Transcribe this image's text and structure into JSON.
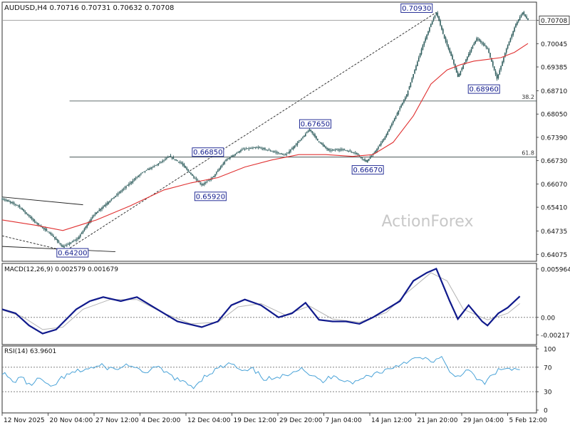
{
  "colors": {
    "background": "#ffffff",
    "border": "#2f2f2f",
    "candle": "#2f5d5d",
    "ma": "#e03030",
    "macd_line": "#101a8c",
    "macd_signal": "#b4b4b4",
    "rsi": "#4aa3d8",
    "grid_ref": "#707070",
    "trendline": "#222222",
    "fib": "#2f3f3f",
    "label_border": "#101a8c",
    "label_text": "#101a8c",
    "watermark": "#c8c8c8"
  },
  "header": {
    "symbol_text": "AUDUSD,H4  0.70716  0.70731  0.70632  0.70708"
  },
  "watermark": "ActionForex",
  "chart_data": [
    {
      "type": "candlestick",
      "symbol": "AUDUSD",
      "timeframe": "H4",
      "ohlc_last": {
        "open": 0.70716,
        "high": 0.70731,
        "low": 0.70632,
        "close": 0.70708
      },
      "current_price_label": "0.70708",
      "ylim": [
        0.64,
        0.711
      ],
      "y_ticks": [
        "0.70708",
        "0.70045",
        "0.69385",
        "0.68710",
        "0.68050",
        "0.67390",
        "0.66730",
        "0.66070",
        "0.65410",
        "0.64735",
        "0.64075"
      ],
      "y_tick_values": [
        0.70708,
        0.70045,
        0.69385,
        0.6871,
        0.6805,
        0.6739,
        0.6673,
        0.6607,
        0.6541,
        0.64735,
        0.64075
      ],
      "x_ticks": [
        "12 Nov 2025",
        "20 Nov 04:00",
        "27 Nov 12:00",
        "4 Dec 20:00",
        "12 Dec 04:00",
        "19 Dec 12:00",
        "29 Dec 20:00",
        "7 Jan 04:00",
        "14 Jan 12:00",
        "21 Jan 20:00",
        "29 Jan 04:00",
        "5 Feb 12:00"
      ],
      "price_path": [
        [
          0,
          0.6565
        ],
        [
          12,
          0.6545
        ],
        [
          24,
          0.65
        ],
        [
          36,
          0.6465
        ],
        [
          45,
          0.6428
        ],
        [
          56,
          0.6452
        ],
        [
          68,
          0.652
        ],
        [
          80,
          0.656
        ],
        [
          92,
          0.66
        ],
        [
          104,
          0.664
        ],
        [
          114,
          0.666
        ],
        [
          124,
          0.6685
        ],
        [
          133,
          0.6665
        ],
        [
          141,
          0.663
        ],
        [
          148,
          0.6604
        ],
        [
          156,
          0.6625
        ],
        [
          166,
          0.6675
        ],
        [
          178,
          0.6705
        ],
        [
          190,
          0.671
        ],
        [
          200,
          0.67
        ],
        [
          210,
          0.6688
        ],
        [
          222,
          0.6735
        ],
        [
          228,
          0.6762
        ],
        [
          234,
          0.673
        ],
        [
          242,
          0.6702
        ],
        [
          252,
          0.6705
        ],
        [
          262,
          0.6695
        ],
        [
          270,
          0.667
        ],
        [
          276,
          0.6695
        ],
        [
          284,
          0.674
        ],
        [
          292,
          0.68
        ],
        [
          300,
          0.686
        ],
        [
          306,
          0.693
        ],
        [
          312,
          0.7
        ],
        [
          318,
          0.706
        ],
        [
          322,
          0.7093
        ],
        [
          328,
          0.702
        ],
        [
          334,
          0.696
        ],
        [
          338,
          0.691
        ],
        [
          344,
          0.696
        ],
        [
          352,
          0.702
        ],
        [
          360,
          0.699
        ],
        [
          367,
          0.6905
        ],
        [
          374,
          0.699
        ],
        [
          381,
          0.706
        ],
        [
          386,
          0.7093
        ],
        [
          390,
          0.7071
        ]
      ],
      "moving_average": [
        [
          0,
          0.6505
        ],
        [
          25,
          0.649
        ],
        [
          45,
          0.6475
        ],
        [
          70,
          0.6505
        ],
        [
          95,
          0.6545
        ],
        [
          120,
          0.659
        ],
        [
          140,
          0.661
        ],
        [
          160,
          0.6625
        ],
        [
          180,
          0.6655
        ],
        [
          200,
          0.6675
        ],
        [
          220,
          0.669
        ],
        [
          240,
          0.669
        ],
        [
          260,
          0.6685
        ],
        [
          275,
          0.669
        ],
        [
          290,
          0.6725
        ],
        [
          305,
          0.68
        ],
        [
          318,
          0.689
        ],
        [
          330,
          0.693
        ],
        [
          340,
          0.6945
        ],
        [
          350,
          0.6955
        ],
        [
          360,
          0.696
        ],
        [
          370,
          0.6965
        ],
        [
          380,
          0.698
        ],
        [
          390,
          0.7005
        ]
      ],
      "price_labels": [
        {
          "text": "0.64200",
          "x": 48,
          "y": 0.642
        },
        {
          "text": "0.66850",
          "x": 150,
          "y": 0.6685
        },
        {
          "text": "0.65920",
          "x": 145,
          "y": 0.6592
        },
        {
          "text": "0.67650",
          "x": 228,
          "y": 0.6765
        },
        {
          "text": "0.66670",
          "x": 268,
          "y": 0.6667
        },
        {
          "text": "0.70930",
          "x": 318,
          "y": 0.7093
        },
        {
          "text": "0.68960",
          "x": 351,
          "y": 0.6896
        }
      ],
      "fib_levels": [
        {
          "label": "38.2",
          "value": 0.6842
        },
        {
          "label": "61.8",
          "value": 0.6683
        }
      ],
      "trendlines": [
        {
          "from": [
            48,
            0.642
          ],
          "to": [
            322,
            0.7093
          ],
          "style": "dashed"
        },
        {
          "from": [
            0,
            0.657
          ],
          "to": [
            60,
            0.6548
          ],
          "style": "solid"
        },
        {
          "from": [
            0,
            0.643
          ],
          "to": [
            84,
            0.6415
          ],
          "style": "solid"
        },
        {
          "from": [
            0,
            0.646
          ],
          "to": [
            44,
            0.642
          ],
          "style": "dashed"
        }
      ]
    },
    {
      "type": "line",
      "title": "MACD(12,26,9) 0.002579 0.001679",
      "ylim": [
        -0.003,
        0.0063
      ],
      "y_ticks": [
        "0.005964",
        "0.00",
        "-0.002177"
      ],
      "y_tick_values": [
        0.005964,
        0.0,
        -0.002177
      ],
      "series": [
        {
          "name": "MACD",
          "points": [
            [
              0,
              0.001
            ],
            [
              10,
              0.0005
            ],
            [
              20,
              -0.001
            ],
            [
              30,
              -0.002
            ],
            [
              40,
              -0.0015
            ],
            [
              55,
              0.001
            ],
            [
              65,
              0.002
            ],
            [
              75,
              0.0025
            ],
            [
              88,
              0.002
            ],
            [
              100,
              0.0025
            ],
            [
              115,
              0.001
            ],
            [
              130,
              -0.0005
            ],
            [
              148,
              -0.0012
            ],
            [
              160,
              -0.0005
            ],
            [
              170,
              0.0015
            ],
            [
              180,
              0.0022
            ],
            [
              192,
              0.0015
            ],
            [
              205,
              0.0
            ],
            [
              215,
              0.0005
            ],
            [
              225,
              0.0018
            ],
            [
              235,
              -0.0003
            ],
            [
              245,
              -0.0005
            ],
            [
              255,
              -0.0005
            ],
            [
              265,
              -0.0008
            ],
            [
              275,
              0.0
            ],
            [
              285,
              0.001
            ],
            [
              295,
              0.002
            ],
            [
              305,
              0.0045
            ],
            [
              315,
              0.0055
            ],
            [
              322,
              0.006
            ],
            [
              332,
              0.002
            ],
            [
              338,
              -0.0002
            ],
            [
              346,
              0.0015
            ],
            [
              356,
              -0.0005
            ],
            [
              360,
              -0.001
            ],
            [
              368,
              0.0005
            ],
            [
              375,
              0.0012
            ],
            [
              384,
              0.0026
            ]
          ]
        },
        {
          "name": "Signal",
          "points": [
            [
              0,
              0.0009
            ],
            [
              15,
              0.0001
            ],
            [
              30,
              -0.0015
            ],
            [
              45,
              -0.0012
            ],
            [
              60,
              0.001
            ],
            [
              80,
              0.0022
            ],
            [
              100,
              0.0022
            ],
            [
              120,
              0.0005
            ],
            [
              140,
              -0.0008
            ],
            [
              160,
              -0.0006
            ],
            [
              175,
              0.0013
            ],
            [
              192,
              0.0017
            ],
            [
              210,
              0.0003
            ],
            [
              228,
              0.0014
            ],
            [
              245,
              -0.0002
            ],
            [
              265,
              -0.0006
            ],
            [
              285,
              0.0006
            ],
            [
              300,
              0.003
            ],
            [
              318,
              0.0055
            ],
            [
              330,
              0.0045
            ],
            [
              342,
              0.001
            ],
            [
              360,
              -0.0003
            ],
            [
              375,
              0.0005
            ],
            [
              384,
              0.0017
            ]
          ]
        }
      ]
    },
    {
      "type": "line",
      "title": "RSI(14) 63.9601",
      "ylim": [
        0,
        100
      ],
      "y_ticks": [
        "100",
        "70",
        "30",
        "0"
      ],
      "y_tick_values": [
        100,
        70,
        30,
        0
      ],
      "series": [
        {
          "name": "RSI",
          "points": [
            [
              0,
              62
            ],
            [
              8,
              45
            ],
            [
              14,
              55
            ],
            [
              20,
              40
            ],
            [
              28,
              52
            ],
            [
              36,
              35
            ],
            [
              44,
              52
            ],
            [
              54,
              62
            ],
            [
              64,
              68
            ],
            [
              74,
              72
            ],
            [
              84,
              66
            ],
            [
              94,
              75
            ],
            [
              104,
              60
            ],
            [
              114,
              70
            ],
            [
              124,
              58
            ],
            [
              134,
              45
            ],
            [
              142,
              38
            ],
            [
              150,
              55
            ],
            [
              160,
              68
            ],
            [
              170,
              76
            ],
            [
              178,
              62
            ],
            [
              186,
              66
            ],
            [
              194,
              52
            ],
            [
              204,
              50
            ],
            [
              214,
              62
            ],
            [
              222,
              70
            ],
            [
              230,
              55
            ],
            [
              238,
              46
            ],
            [
              246,
              58
            ],
            [
              254,
              48
            ],
            [
              262,
              45
            ],
            [
              270,
              55
            ],
            [
              280,
              62
            ],
            [
              290,
              70
            ],
            [
              300,
              80
            ],
            [
              310,
              85
            ],
            [
              318,
              80
            ],
            [
              326,
              85
            ],
            [
              332,
              60
            ],
            [
              338,
              55
            ],
            [
              344,
              66
            ],
            [
              352,
              52
            ],
            [
              358,
              42
            ],
            [
              364,
              60
            ],
            [
              372,
              68
            ],
            [
              380,
              66
            ],
            [
              384,
              64
            ]
          ]
        }
      ]
    }
  ]
}
